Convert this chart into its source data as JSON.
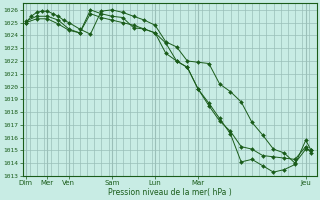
{
  "xlabel": "Pression niveau de la mer( hPa )",
  "bg_color": "#c8ece4",
  "grid_color": "#9abfb8",
  "line_color": "#1a5c1a",
  "ylim": [
    1013,
    1026.5
  ],
  "yticks": [
    1013,
    1014,
    1015,
    1016,
    1017,
    1018,
    1019,
    1020,
    1021,
    1022,
    1023,
    1024,
    1025,
    1026
  ],
  "day_lines": [
    0,
    1,
    2,
    4,
    6,
    8,
    13
  ],
  "day_labels": [
    "Dim",
    "Mer",
    "Ven",
    "Sam",
    "Lun",
    "Mar",
    "Jeu"
  ],
  "xlim": [
    -0.15,
    13.5
  ],
  "num_vgrid": 42,
  "series1_x": [
    0,
    0.25,
    0.5,
    0.75,
    1.0,
    1.25,
    1.5,
    1.75,
    2.0,
    2.5,
    3.0,
    3.5,
    4.0,
    4.5,
    5.0,
    5.5,
    6.0,
    6.5,
    7.0,
    7.5,
    8.0,
    8.5,
    9.0,
    9.5,
    10.0,
    10.5,
    11.0,
    11.5,
    12.0,
    12.5,
    13.0,
    13.25
  ],
  "series1": [
    1025.0,
    1025.5,
    1025.8,
    1025.9,
    1025.9,
    1025.7,
    1025.5,
    1025.2,
    1025.0,
    1024.5,
    1024.1,
    1025.9,
    1026.0,
    1025.8,
    1025.5,
    1025.2,
    1024.8,
    1023.5,
    1023.1,
    1022.0,
    1021.9,
    1021.8,
    1020.2,
    1019.6,
    1018.8,
    1017.2,
    1016.2,
    1015.1,
    1014.8,
    1014.0,
    1015.1,
    1015.0
  ],
  "series2_x": [
    0,
    0.5,
    1.0,
    1.5,
    2.0,
    2.5,
    3.0,
    3.5,
    4.0,
    4.5,
    5.0,
    5.5,
    6.0,
    6.5,
    7.0,
    7.5,
    8.0,
    8.5,
    9.0,
    9.5,
    10.0,
    10.5,
    11.0,
    11.5,
    12.0,
    12.5,
    13.0,
    13.25
  ],
  "series2": [
    1025.0,
    1025.3,
    1025.3,
    1024.9,
    1024.4,
    1024.2,
    1025.7,
    1025.4,
    1025.2,
    1025.0,
    1024.8,
    1024.5,
    1024.2,
    1023.4,
    1022.0,
    1021.5,
    1019.8,
    1018.5,
    1017.3,
    1016.5,
    1015.3,
    1015.1,
    1014.6,
    1014.5,
    1014.4,
    1014.3,
    1015.3,
    1014.8
  ],
  "series3_x": [
    0,
    0.5,
    1.0,
    1.5,
    2.0,
    2.5,
    3.0,
    3.5,
    4.0,
    4.5,
    5.0,
    5.5,
    6.0,
    6.5,
    7.0,
    7.5,
    8.0,
    8.5,
    9.0,
    9.5,
    10.0,
    10.5,
    11.0,
    11.5,
    12.0,
    12.5,
    13.0,
    13.25
  ],
  "series3": [
    1025.1,
    1025.5,
    1025.5,
    1025.2,
    1024.5,
    1024.2,
    1026.0,
    1025.7,
    1025.5,
    1025.4,
    1024.6,
    1024.5,
    1024.2,
    1022.6,
    1022.0,
    1021.5,
    1019.8,
    1018.7,
    1017.5,
    1016.3,
    1014.1,
    1014.3,
    1013.8,
    1013.3,
    1013.5,
    1013.9,
    1015.8,
    1015.0
  ]
}
